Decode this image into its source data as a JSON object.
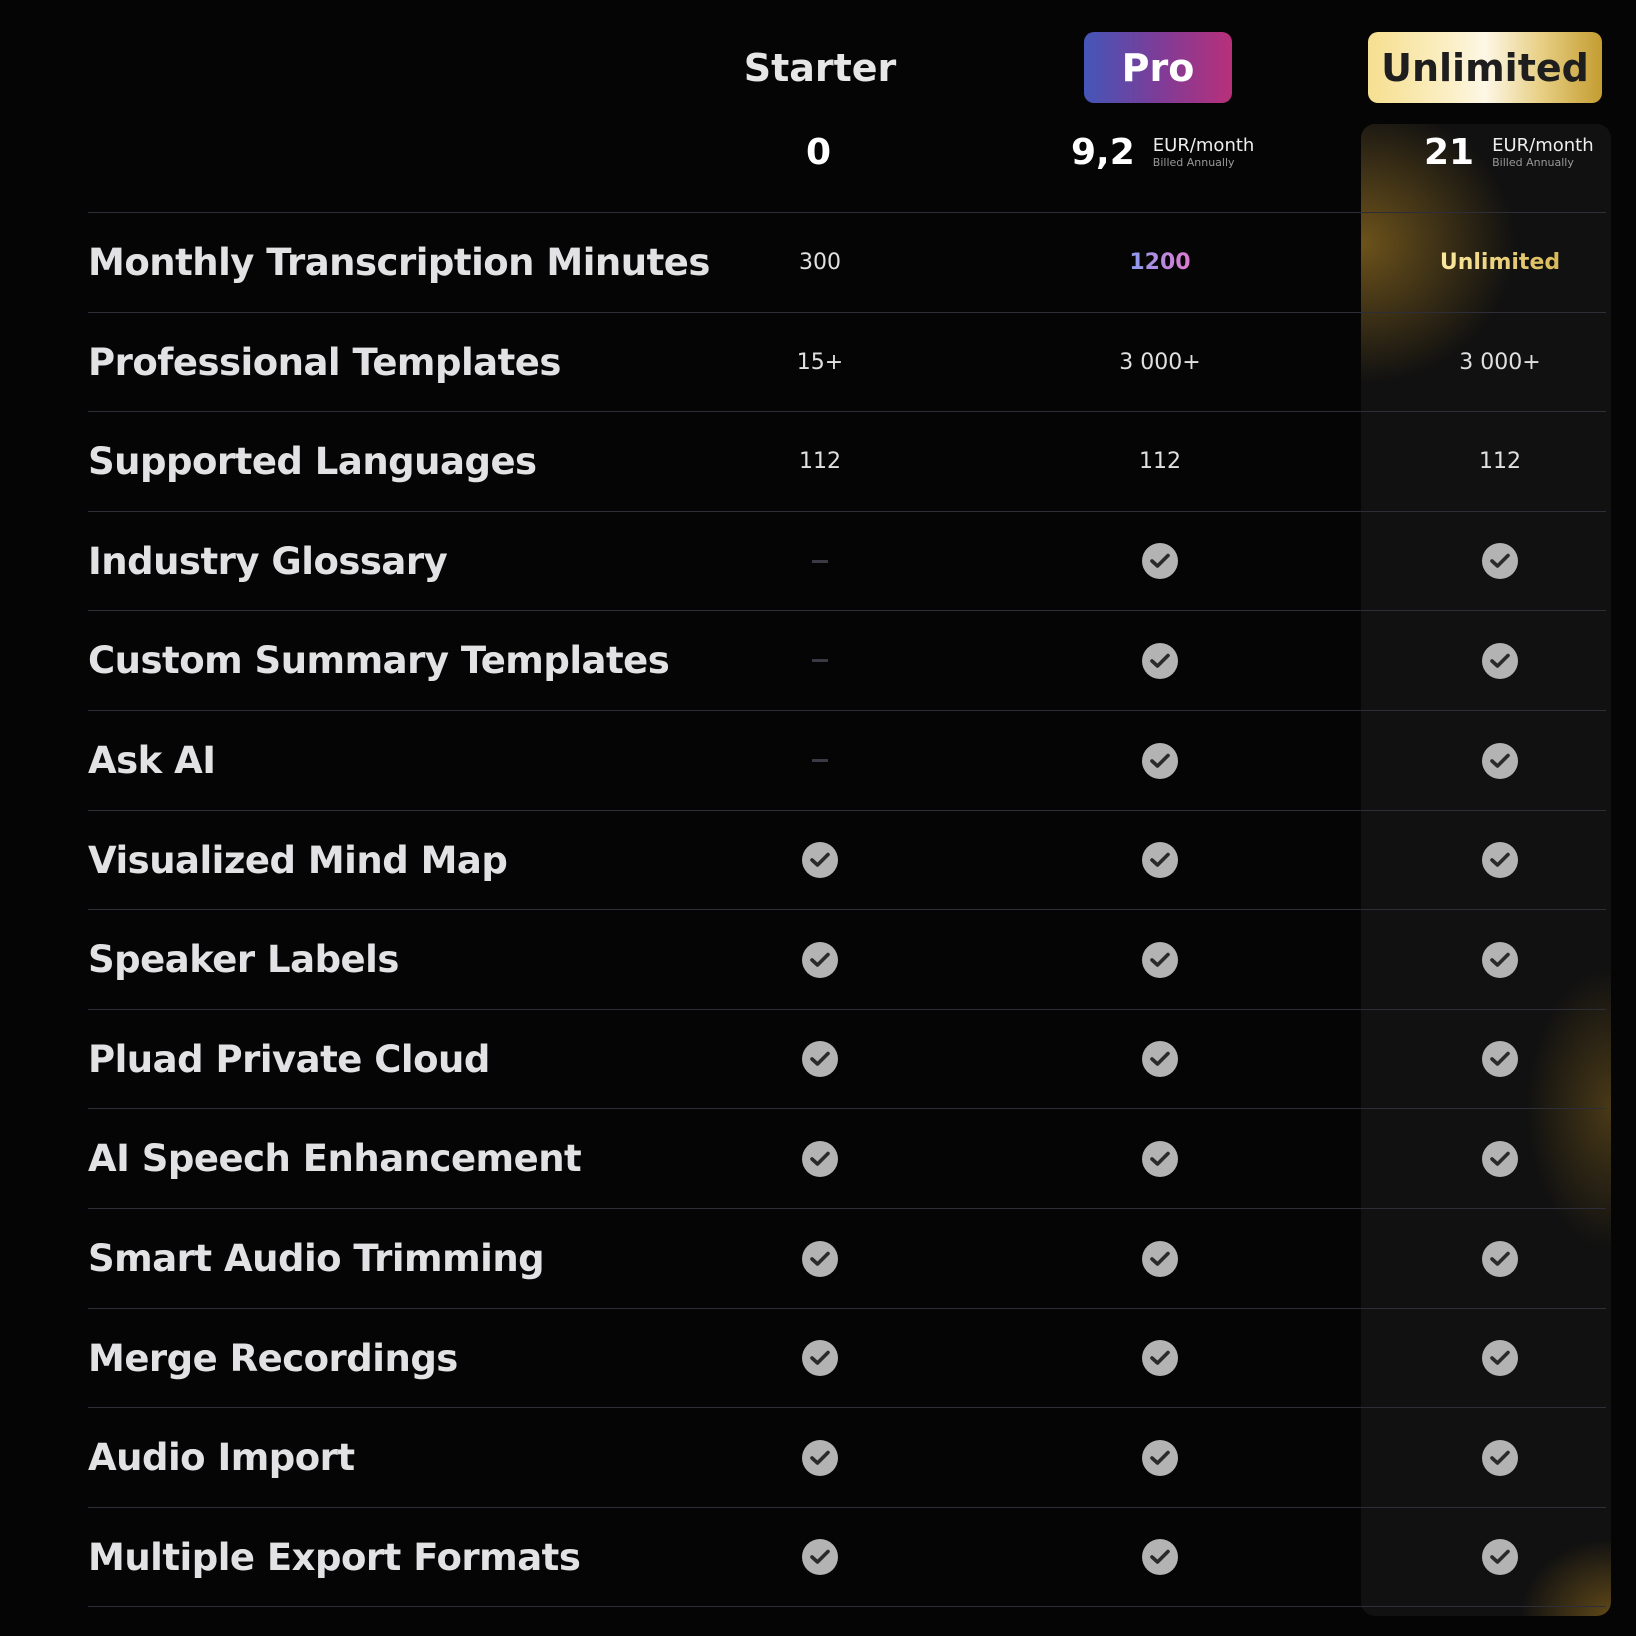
{
  "plans": [
    {
      "name": "Starter",
      "price": "0",
      "unit": "",
      "billing": ""
    },
    {
      "name": "Pro",
      "price": "9,2",
      "unit": "EUR/month",
      "billing": "Billed Annually"
    },
    {
      "name": "Unlimited",
      "price": "21",
      "unit": "EUR/month",
      "billing": "Billed Annually"
    }
  ],
  "colors": {
    "pro_gradient": [
      "#4456b8",
      "#b8307a"
    ],
    "unlimited_gold": [
      "#f6df90",
      "#c49d32"
    ],
    "check": "#b3b3b3"
  },
  "features": [
    {
      "label": "Monthly Transcription Minutes",
      "values": [
        "300",
        "1200",
        "Unlimited"
      ]
    },
    {
      "label": "Professional Templates",
      "values": [
        "15+",
        "3 000+",
        "3 000+"
      ]
    },
    {
      "label": "Supported Languages",
      "values": [
        "112",
        "112",
        "112"
      ]
    },
    {
      "label": "Industry Glossary",
      "values": [
        "dash",
        "check",
        "check"
      ]
    },
    {
      "label": "Custom Summary Templates",
      "values": [
        "dash",
        "check",
        "check"
      ]
    },
    {
      "label": "Ask AI",
      "values": [
        "dash",
        "check",
        "check"
      ]
    },
    {
      "label": "Visualized Mind Map",
      "values": [
        "check",
        "check",
        "check"
      ]
    },
    {
      "label": "Speaker Labels",
      "values": [
        "check",
        "check",
        "check"
      ]
    },
    {
      "label": "Pluad Private Cloud",
      "values": [
        "check",
        "check",
        "check"
      ]
    },
    {
      "label": "AI Speech Enhancement",
      "values": [
        "check",
        "check",
        "check"
      ]
    },
    {
      "label": "Smart Audio Trimming",
      "values": [
        "check",
        "check",
        "check"
      ]
    },
    {
      "label": "Merge Recordings",
      "values": [
        "check",
        "check",
        "check"
      ]
    },
    {
      "label": "Audio Import",
      "values": [
        "check",
        "check",
        "check"
      ]
    },
    {
      "label": "Multiple Export Formats",
      "values": [
        "check",
        "check",
        "check"
      ]
    }
  ]
}
